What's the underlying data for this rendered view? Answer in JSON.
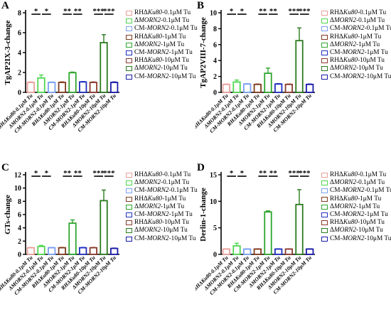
{
  "chart_data": [
    {
      "type": "bar",
      "panel_label": "A",
      "ylabel": "TgAP2IX-3-change",
      "ylim": [
        0,
        8
      ],
      "yticks": [
        0,
        2,
        4,
        6,
        8
      ],
      "categories": [
        "RHΔKu80-0.1μM Tu",
        "ΔMORN2-0.1μM Tu",
        "CM-MORN2-0.1μM Tu",
        "RHΔKu80-1μM Tu",
        "ΔMORN2-1μM Tu",
        "CM-MORN2-1μM Tu",
        "RHΔKu80-10μM Tu",
        "ΔMORN2-10μM Tu",
        "CM-MORN2-10μM Tu"
      ],
      "values": [
        1.0,
        1.45,
        1.0,
        1.0,
        1.98,
        1.05,
        1.0,
        5.0,
        1.0
      ],
      "errors": [
        0.05,
        0.3,
        0.04,
        0.05,
        0.06,
        0.04,
        0.05,
        0.8,
        0.05
      ],
      "significance": [
        {
          "text": "*",
          "from": 0,
          "to": 1
        },
        {
          "text": "*",
          "from": 1,
          "to": 2
        },
        {
          "text": "**",
          "from": 3,
          "to": 4
        },
        {
          "text": "**",
          "from": 4,
          "to": 5
        },
        {
          "text": "***",
          "from": 6,
          "to": 7
        },
        {
          "text": "***",
          "from": 7,
          "to": 8
        }
      ]
    },
    {
      "type": "bar",
      "panel_label": "B",
      "ylabel": "TgAP2VIII-7-change",
      "ylim": [
        0,
        10
      ],
      "yticks": [
        0,
        2,
        4,
        6,
        8,
        10
      ],
      "categories": [
        "RHΔKu80-0.1μM Tu",
        "ΔMORN2-0.1μM Tu",
        "CM-MORN2-0.1μM Tu",
        "RHΔKu80-1μM Tu",
        "ΔMORN2-1μM Tu",
        "CM-MORN2-1μM Tu",
        "RHΔKu80-10μM Tu",
        "ΔMORN2-10μM Tu",
        "CM-MORN2-10μM Tu"
      ],
      "values": [
        1.0,
        1.3,
        1.05,
        1.0,
        2.4,
        1.05,
        1.0,
        6.5,
        1.0
      ],
      "errors": [
        0.05,
        0.25,
        0.05,
        0.05,
        0.65,
        0.05,
        0.05,
        1.6,
        0.05
      ],
      "significance": [
        {
          "text": "*",
          "from": 0,
          "to": 1
        },
        {
          "text": "*",
          "from": 1,
          "to": 2
        },
        {
          "text": "**",
          "from": 3,
          "to": 4
        },
        {
          "text": "**",
          "from": 4,
          "to": 5
        },
        {
          "text": "***",
          "from": 6,
          "to": 7
        },
        {
          "text": "***",
          "from": 7,
          "to": 8
        }
      ]
    },
    {
      "type": "bar",
      "panel_label": "C",
      "ylabel": "GTs-change",
      "ylim": [
        0,
        12
      ],
      "yticks": [
        0,
        2,
        4,
        6,
        8,
        10,
        12
      ],
      "categories": [
        "RHΔKu80-0.1μM Tu",
        "ΔMORN2-0.1μM Tu",
        "CM-MORN2-0.1μM Tu",
        "RHΔKu80-1μM Tu",
        "ΔMORN2-1μM Tu",
        "CM-MORN2-1μM Tu",
        "RHΔKu80-10μM Tu",
        "ΔMORN2-10μM Tu",
        "CM-MORN2-10μM Tu"
      ],
      "values": [
        1.0,
        1.2,
        1.0,
        1.0,
        4.7,
        1.0,
        1.0,
        8.1,
        0.9
      ],
      "errors": [
        0.05,
        0.15,
        0.05,
        0.05,
        0.5,
        0.05,
        0.05,
        1.6,
        0.05
      ],
      "significance": [
        {
          "text": "*",
          "from": 0,
          "to": 1
        },
        {
          "text": "*",
          "from": 1,
          "to": 2
        },
        {
          "text": "**",
          "from": 3,
          "to": 4
        },
        {
          "text": "**",
          "from": 4,
          "to": 5
        },
        {
          "text": "***",
          "from": 6,
          "to": 7
        },
        {
          "text": "***",
          "from": 7,
          "to": 8
        }
      ]
    },
    {
      "type": "bar",
      "panel_label": "D",
      "ylabel": "Derlin-1-change",
      "ylim": [
        0,
        15
      ],
      "yticks": [
        0,
        5,
        10,
        15
      ],
      "categories": [
        "RHΔKu80-0.1μM Tu",
        "ΔMORN2-0.1μM Tu",
        "CM-MORN2-0.1μM Tu",
        "RHΔKu80-1μM Tu",
        "CM-MORN2-1μM Tu",
        "ΔMORN2-1μM Tu",
        "RHΔKu80-10μM Tu",
        "ΔMORN2-10μM Tu",
        "CM-MORN2-10μM Tu"
      ],
      "values": [
        1.0,
        1.6,
        1.0,
        1.0,
        8.0,
        1.0,
        1.0,
        9.4,
        1.0
      ],
      "errors": [
        0.05,
        0.5,
        0.05,
        0.05,
        0.2,
        0.05,
        0.05,
        2.8,
        0.05
      ],
      "significance": [
        {
          "text": "*",
          "from": 0,
          "to": 1
        },
        {
          "text": "*",
          "from": 1,
          "to": 2
        },
        {
          "text": "**",
          "from": 3,
          "to": 4
        },
        {
          "text": "**",
          "from": 4,
          "to": 5
        },
        {
          "text": "***",
          "from": 6,
          "to": 7
        },
        {
          "text": "***",
          "from": 7,
          "to": 8
        }
      ]
    }
  ],
  "legend_entries": [
    {
      "prefix": "RHΔ",
      "italic": "Ku80",
      "suffix": "-0.1μM Tu",
      "color": "#e8a19a"
    },
    {
      "prefix": "Δ",
      "italic": "MORN2",
      "suffix": "-0.1μM Tu",
      "color": "#4fd64f"
    },
    {
      "prefix": "CM-",
      "italic": "MORN2",
      "suffix": "-0.1μM Tu",
      "color": "#7aa0f0"
    },
    {
      "prefix": "RHΔ",
      "italic": "Ku80",
      "suffix": "-1μM Tu",
      "color": "#7f3b1e"
    },
    {
      "prefix": "Δ",
      "italic": "MORN2",
      "suffix": "-1μM Tu",
      "color": "#2ea52e"
    },
    {
      "prefix": "CM-",
      "italic": "MORN2",
      "suffix": "-1μM Tu",
      "color": "#1f2fbf"
    },
    {
      "prefix": "RHΔ",
      "italic": "Ku80",
      "suffix": "-10μM Tu",
      "color": "#8b3a2e"
    },
    {
      "prefix": "Δ",
      "italic": "MORN2",
      "suffix": "-10μM Tu",
      "color": "#2b7a1f"
    },
    {
      "prefix": "CM-",
      "italic": "MORN2",
      "suffix": "-10μM Tu",
      "color": "#1a1aa8"
    }
  ],
  "legend_entries_d": [
    {
      "prefix": "RHΔ",
      "italic": "Ku80",
      "suffix": "-0.1μM Tu",
      "color": "#e8a19a"
    },
    {
      "prefix": "Δ",
      "italic": "MORN2",
      "suffix": "-0.1μM Tu",
      "color": "#4fd64f"
    },
    {
      "prefix": "CM-",
      "italic": "MORN2",
      "suffix": "-0.1μM Tu",
      "color": "#7aa0f0"
    },
    {
      "prefix": "RHΔ",
      "italic": "Ku80",
      "suffix": "-1μM Tu",
      "color": "#7f3b1e"
    },
    {
      "prefix": "Δ",
      "italic": "MORN2",
      "suffix": "-1μM Tu",
      "color": "#2ea52e"
    },
    {
      "prefix": "CM-",
      "italic": "MORN2",
      "suffix": "-1μM Tu",
      "color": "#1f2fbf"
    },
    {
      "prefix": "RHΔ",
      "italic": "Ku80",
      "suffix": "-10μM Tu",
      "color": "#8b3a2e"
    },
    {
      "prefix": "Δ",
      "italic": "MORN2",
      "suffix": "-10μM Tu",
      "color": "#2b7a1f"
    },
    {
      "prefix": "CM-",
      "italic": "MORN2",
      "suffix": "-10μM Tu",
      "color": "#1a1aa8"
    }
  ],
  "bar_colors": [
    "#e8a19a",
    "#4fd64f",
    "#7aa0f0",
    "#7f3b1e",
    "#2ea52e",
    "#1f2fbf",
    "#8b3a2e",
    "#2b7a1f",
    "#1a1aa8"
  ],
  "bar_colors_d": [
    "#e8a19a",
    "#4fd64f",
    "#7aa0f0",
    "#7f3b1e",
    "#2ea52e",
    "#1f2fbf",
    "#8b3a2e",
    "#2b7a1f",
    "#1a1aa8"
  ],
  "tick_labels": [
    {
      "prefix": "RHΔ",
      "italic": "Ku80",
      "suffix": "-0.1μM Tu"
    },
    {
      "prefix": "Δ",
      "italic": "MORN2",
      "suffix": "-0.1μM Tu"
    },
    {
      "prefix": "CM-",
      "italic": "MORN2",
      "suffix": "-0.1μM Tu"
    },
    {
      "prefix": "RHΔ",
      "italic": "Ku80",
      "suffix": "-1μM Tu"
    },
    {
      "prefix": "Δ",
      "italic": "MORN2",
      "suffix": "-1μM Tu"
    },
    {
      "prefix": "CM-",
      "italic": "MORN2",
      "suffix": "-1μM Tu"
    },
    {
      "prefix": "RHΔ",
      "italic": "Ku80",
      "suffix": "-10μM Tu"
    },
    {
      "prefix": "Δ",
      "italic": "MORN2",
      "suffix": "-10μM Tu"
    },
    {
      "prefix": "CM-",
      "italic": "MORN2",
      "suffix": "-10μM Tu"
    }
  ],
  "tick_labels_d": [
    {
      "prefix": "RHΔ",
      "italic": "Ku80",
      "suffix": "-0.1μM Tu"
    },
    {
      "prefix": "Δ",
      "italic": "MORN2",
      "suffix": "-0.1μM Tu"
    },
    {
      "prefix": "CM-",
      "italic": "MORN2",
      "suffix": "-0.1μM Tu"
    },
    {
      "prefix": "RHΔ",
      "italic": "Ku80",
      "suffix": "-1μM Tu"
    },
    {
      "prefix": "CM-",
      "italic": "MORN2",
      "suffix": "-1μM Tu"
    },
    {
      "prefix": "Δ",
      "italic": "MORN2",
      "suffix": "-1μM Tu"
    },
    {
      "prefix": "RHΔ",
      "italic": "Ku80",
      "suffix": "-10μM Tu"
    },
    {
      "prefix": "Δ",
      "italic": "MORN2",
      "suffix": "-10μM Tu"
    },
    {
      "prefix": "CM-",
      "italic": "MORN2",
      "suffix": "-10μM Tu"
    }
  ]
}
